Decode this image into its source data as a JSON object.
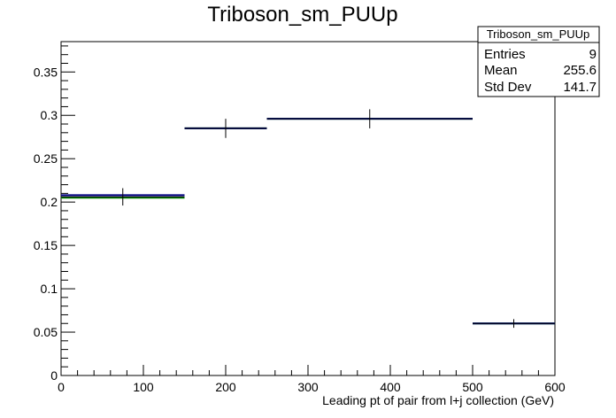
{
  "chart_data": {
    "type": "histogram",
    "title": "Triboson_sm_PUUp",
    "xlabel": "Leading pt of pair from l+j collection (GeV)",
    "ylabel": "",
    "xlim": [
      0,
      600
    ],
    "ylim": [
      0,
      0.385
    ],
    "x_ticks": [
      0,
      100,
      200,
      300,
      400,
      500,
      600
    ],
    "y_ticks": [
      0,
      0.05,
      0.1,
      0.15,
      0.2,
      0.25,
      0.3,
      0.35
    ],
    "x_tick_labels": [
      "0",
      "100",
      "200",
      "300",
      "400",
      "500",
      "600"
    ],
    "y_tick_labels": [
      "0",
      "0.05",
      "0.1",
      "0.15",
      "0.2",
      "0.25",
      "0.3",
      "0.35"
    ],
    "grid": false,
    "bins": [
      {
        "low": 0,
        "high": 150,
        "center": 75,
        "value": 0.206,
        "error": 0.01
      },
      {
        "low": 150,
        "high": 250,
        "center": 200,
        "value": 0.285,
        "error": 0.011
      },
      {
        "low": 250,
        "high": 500,
        "center": 375,
        "value": 0.296,
        "error": 0.011
      },
      {
        "low": 500,
        "high": 600,
        "center": 550,
        "value": 0.06,
        "error": 0.005
      }
    ],
    "series": [
      {
        "name": "",
        "color": "#000080",
        "values": [
          0.208,
          0.285,
          0.296,
          0.06
        ]
      },
      {
        "name": "",
        "color": "#008000",
        "values": [
          0.205,
          0.285,
          0.296,
          0.06
        ]
      }
    ],
    "stats_box": {
      "title": "Triboson_sm_PUUp",
      "entries_label": "Entries",
      "entries_value": "9",
      "mean_label": "Mean",
      "mean_value": "255.6",
      "stddev_label": "Std Dev",
      "stddev_value": "141.7"
    }
  }
}
